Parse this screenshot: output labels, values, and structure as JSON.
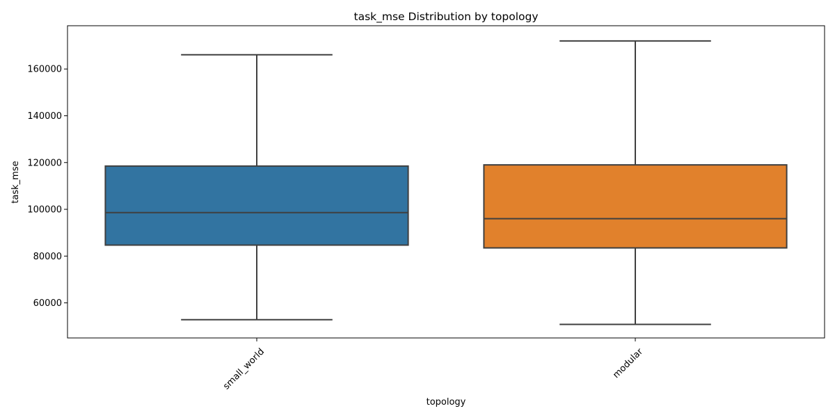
{
  "chart_data": {
    "type": "box",
    "title": "task_mse Distribution by topology",
    "xlabel": "topology",
    "ylabel": "task_mse",
    "categories": [
      "small_world",
      "modular"
    ],
    "boxes": [
      {
        "category": "small_world",
        "whisker_low": 52800,
        "q1": 84700,
        "median": 98600,
        "q3": 118500,
        "whisker_high": 166100,
        "color": "#3274a1"
      },
      {
        "category": "modular",
        "whisker_low": 50800,
        "q1": 83500,
        "median": 96000,
        "q3": 119000,
        "whisker_high": 172000,
        "color": "#e1812c"
      }
    ],
    "ylim": [
      45000,
      178500
    ],
    "yticks": [
      60000,
      80000,
      100000,
      120000,
      140000,
      160000
    ],
    "ytick_labels": [
      "60000",
      "80000",
      "100000",
      "120000",
      "140000",
      "160000"
    ],
    "xtick_rotation_deg": 45,
    "grid": false,
    "legend": "none",
    "line_color": "#3f3f3f"
  }
}
